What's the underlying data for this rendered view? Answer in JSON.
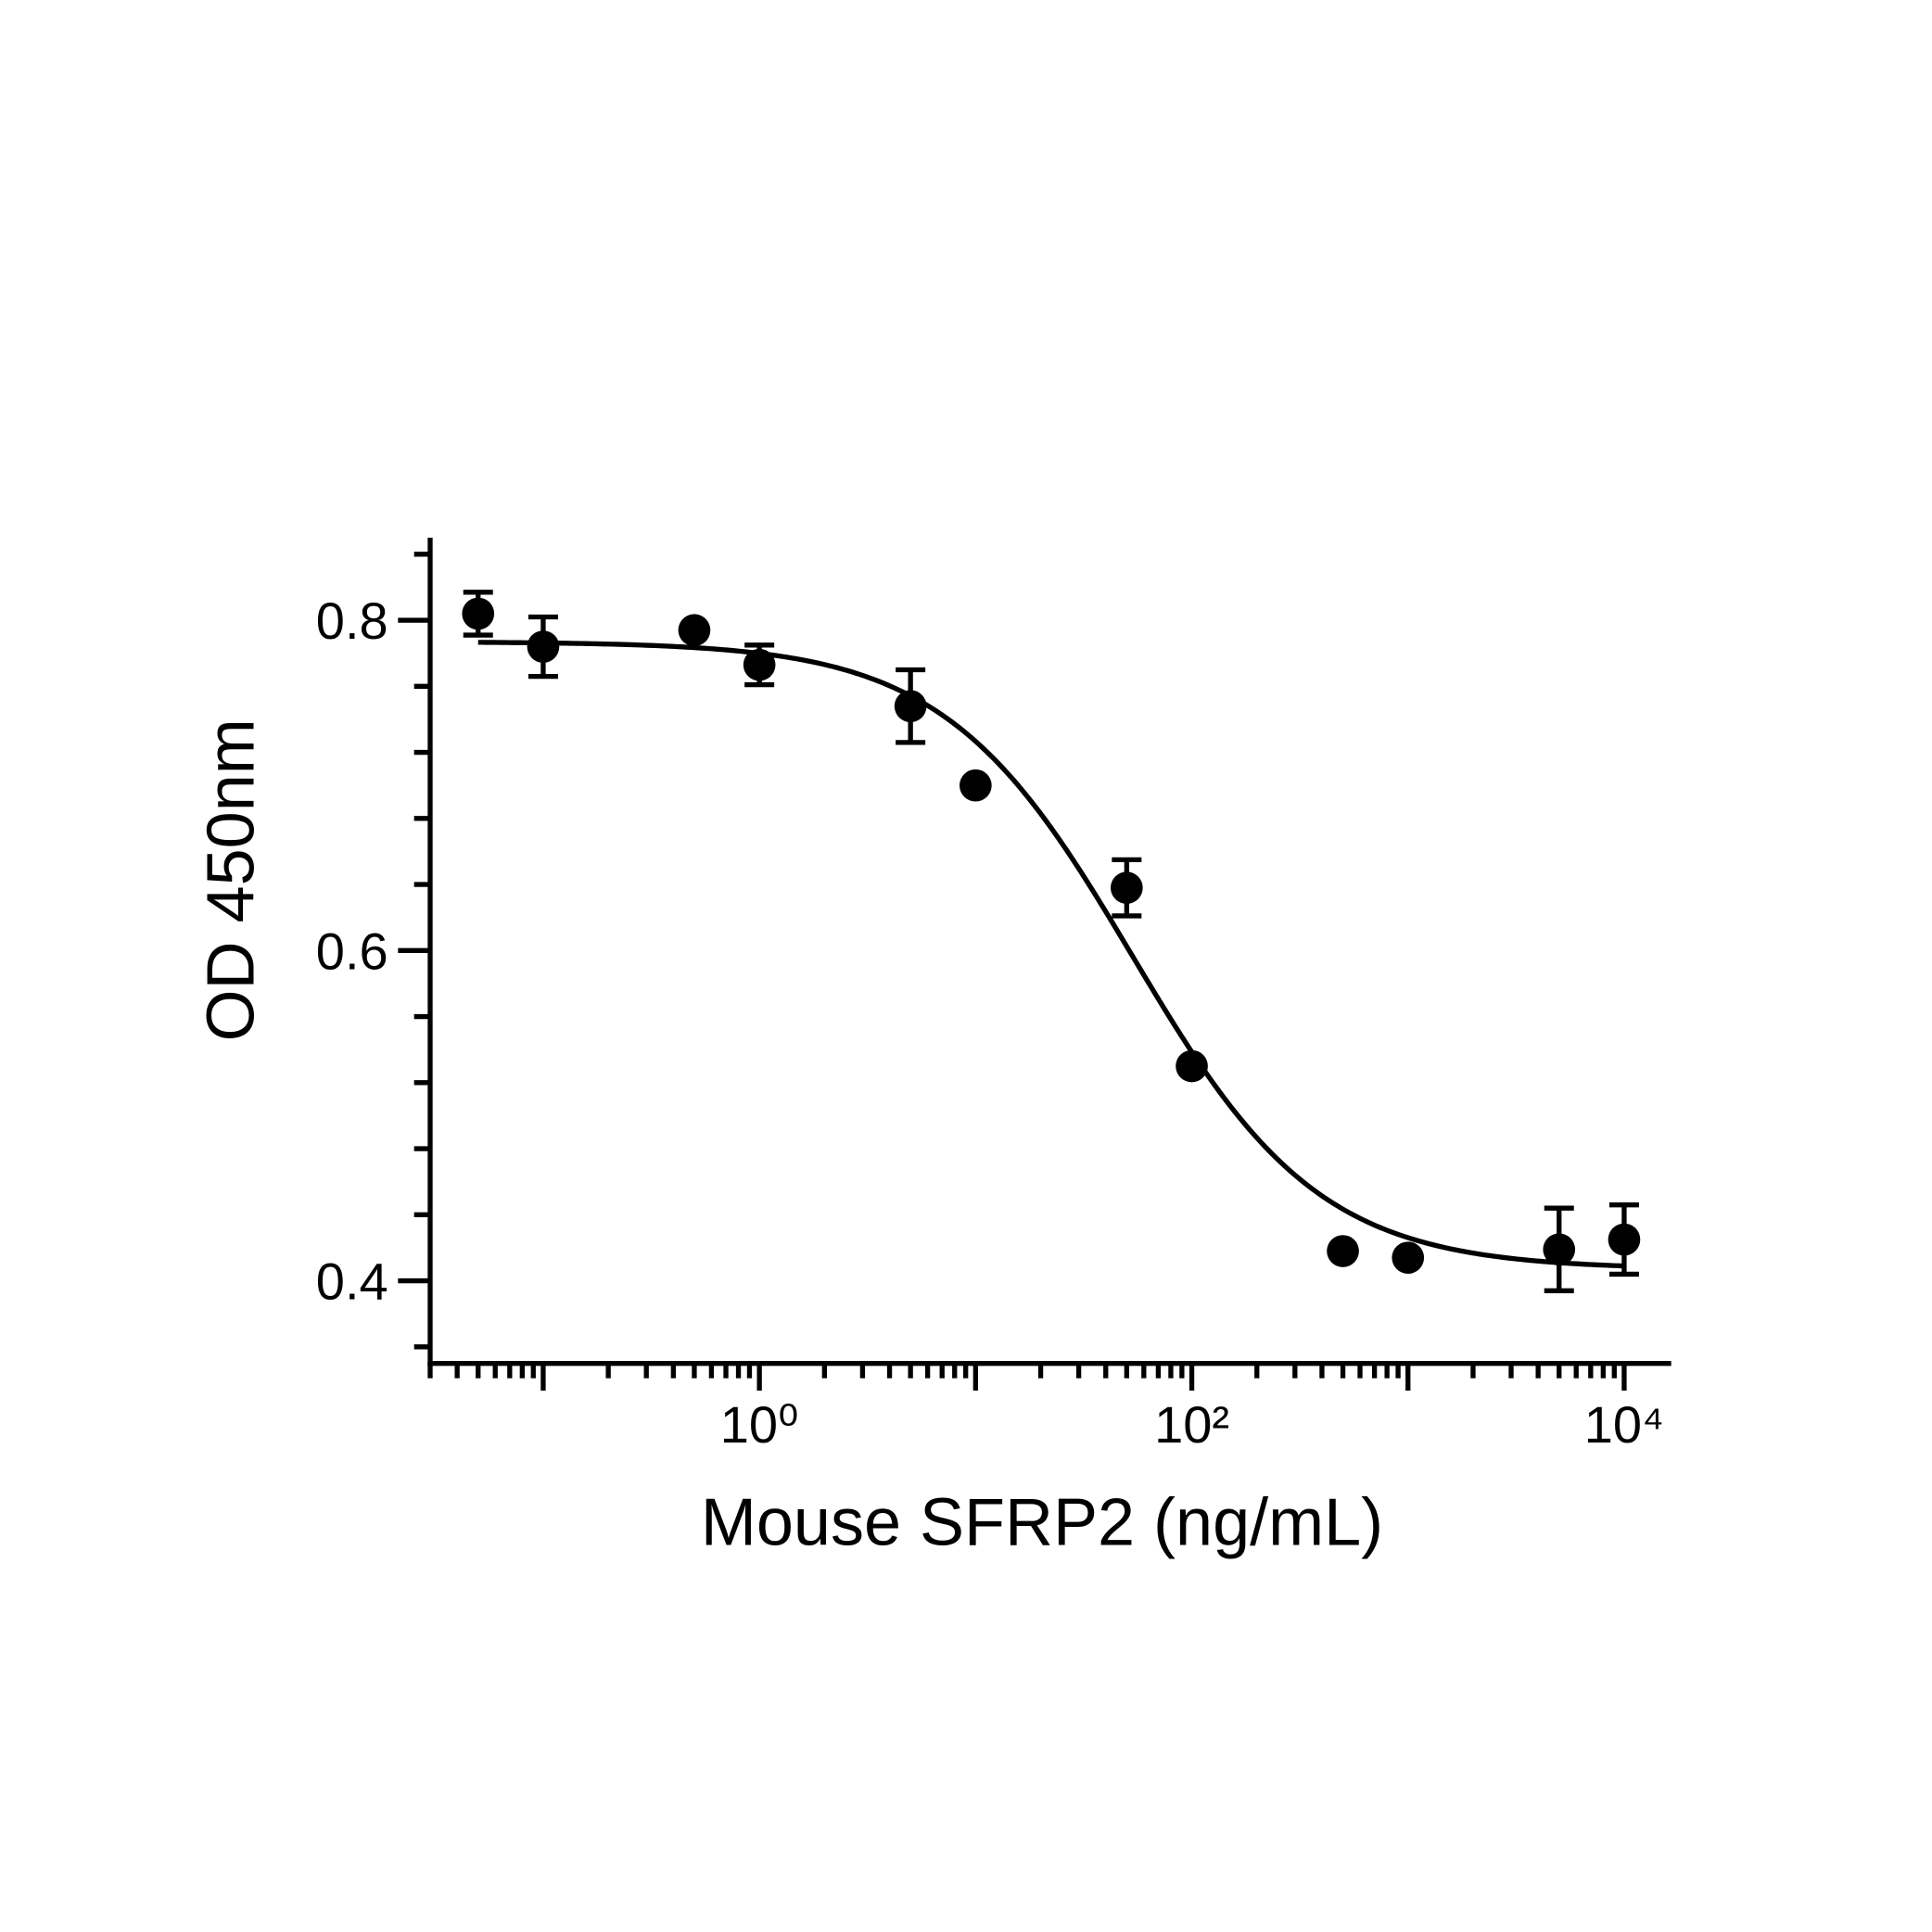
{
  "chart_data": {
    "type": "scatter",
    "x_label": "Mouse SFRP2 (ng/mL)",
    "y_label": "OD 450nm",
    "x": [
      0.05,
      0.1,
      0.5,
      1,
      5,
      10,
      50,
      100,
      500,
      1000,
      5000,
      10000
    ],
    "series": [
      {
        "name": "OD 450nm",
        "color": "#000000",
        "values": [
          0.804,
          0.784,
          0.794,
          0.773,
          0.748,
          0.7,
          0.638,
          0.53,
          0.418,
          0.414,
          0.419,
          0.425
        ],
        "errors": [
          0.013,
          0.018,
          null,
          0.012,
          0.022,
          null,
          0.017,
          null,
          null,
          null,
          0.025,
          0.021
        ]
      }
    ],
    "fit": {
      "top": 0.787,
      "bottom": 0.407,
      "ec50": 53,
      "hill": 1
    },
    "xlog": true,
    "xlim": [
      0.03,
      16500
    ],
    "xticks": [
      {
        "value": 1,
        "label": "10⁰"
      },
      {
        "value": 100,
        "label": "10²"
      },
      {
        "value": 10000,
        "label": "10⁴"
      }
    ],
    "ylim": [
      0.35,
      0.85
    ],
    "yticks": [
      0.4,
      0.6,
      0.8
    ],
    "minor_ticks": true,
    "grid": false
  }
}
